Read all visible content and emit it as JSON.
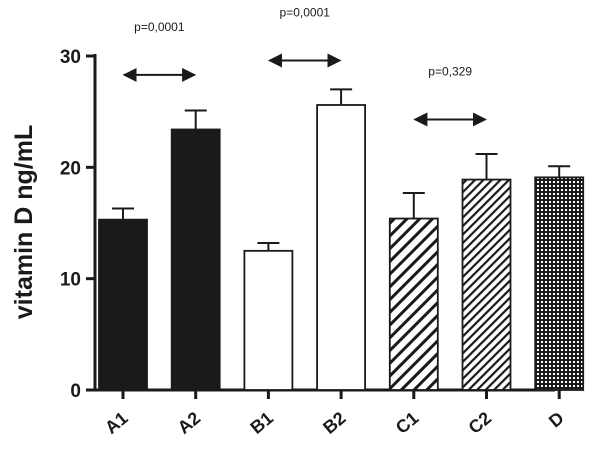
{
  "chart_data": {
    "type": "bar",
    "ylabel": "vitamin D ng/mL",
    "xlabel": "",
    "ylim": [
      0,
      30
    ],
    "yticks": [
      0,
      10,
      20,
      30
    ],
    "grid": false,
    "categories": [
      "A1",
      "A2",
      "B1",
      "B2",
      "C1",
      "C2",
      "D"
    ],
    "values": [
      15.3,
      23.4,
      12.5,
      25.6,
      15.4,
      18.9,
      19.1
    ],
    "errors": [
      1.0,
      1.7,
      0.7,
      1.4,
      2.3,
      2.3,
      1.0
    ],
    "fills": [
      "solid-black",
      "solid-black",
      "white",
      "white",
      "diagonal-stripes",
      "diagonal-stripes-dense",
      "dotted"
    ],
    "comparisons": [
      {
        "from": "A1",
        "to": "A2",
        "label": "p=0,0001",
        "y": 28.3
      },
      {
        "from": "B1",
        "to": "B2",
        "label": "p=0,0001",
        "y": 29.6
      },
      {
        "from": "C1",
        "to": "C2",
        "label": "p=0,329",
        "y": 24.3
      }
    ]
  },
  "colors": {
    "bar": "#1a1a1a",
    "axis": "#1a1a1a",
    "background": "#ffffff"
  }
}
